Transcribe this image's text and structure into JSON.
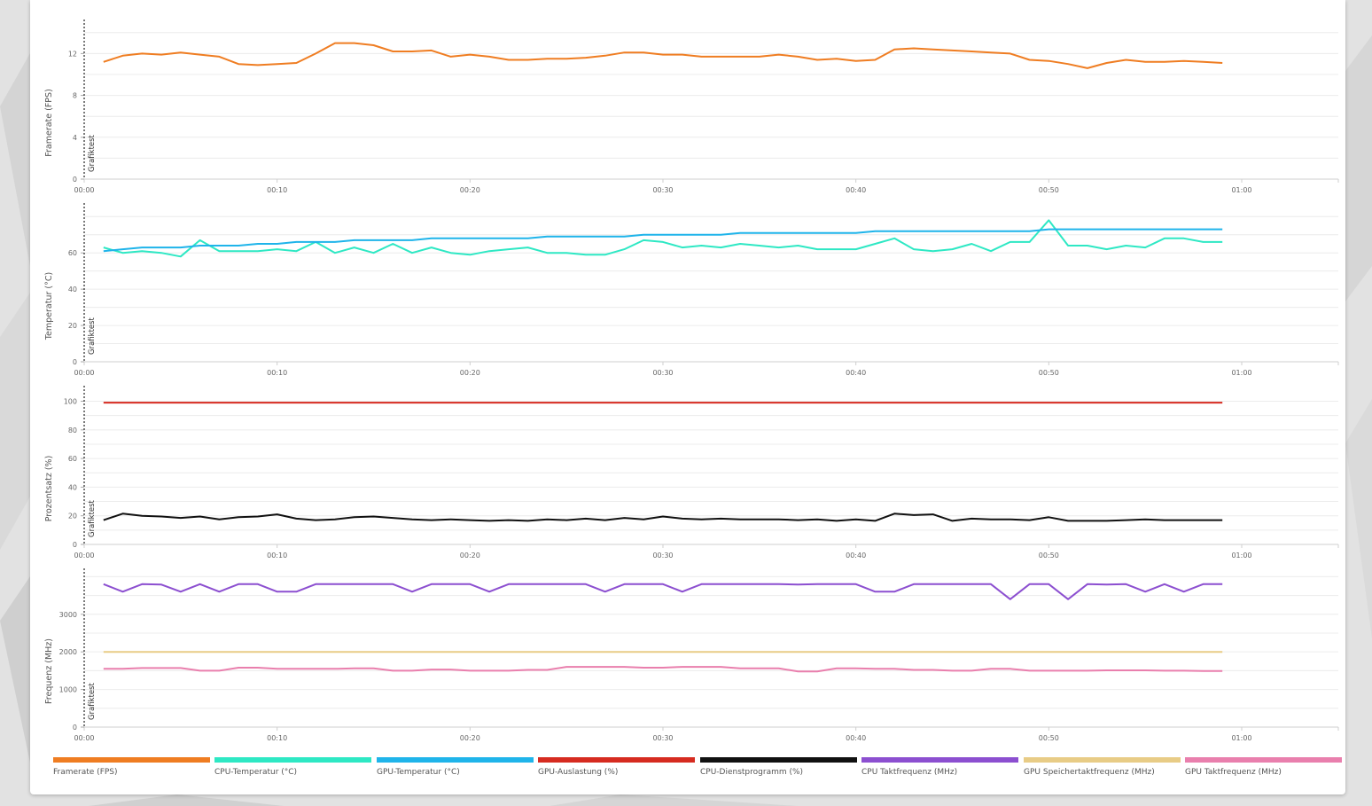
{
  "colors": {
    "fps": "#ef7d22",
    "cpu_temp": "#2ee8c4",
    "gpu_temp": "#1fb4ea",
    "gpu_load": "#d62b20",
    "cpu_util": "#111111",
    "cpu_clock": "#8c4fd0",
    "gpu_mem_clock": "#e8cc86",
    "gpu_clock": "#e97fad"
  },
  "legend": [
    {
      "label": "Framerate (FPS)",
      "color": "#ef7d22"
    },
    {
      "label": "CPU-Temperatur (°C)",
      "color": "#2ee8c4"
    },
    {
      "label": "GPU-Temperatur (°C)",
      "color": "#1fb4ea"
    },
    {
      "label": "GPU-Auslastung (%)",
      "color": "#d62b20"
    },
    {
      "label": "CPU-Dienstprogramm (%)",
      "color": "#111111"
    },
    {
      "label": "CPU Taktfrequenz (MHz)",
      "color": "#8c4fd0"
    },
    {
      "label": "GPU Speichertaktfrequenz (MHz)",
      "color": "#e8cc86"
    },
    {
      "label": "GPU Taktfrequenz (MHz)",
      "color": "#e97fad"
    }
  ],
  "chart_data": [
    {
      "type": "line",
      "ylabel": "Framerate (FPS)",
      "marker_label": "Grafiktest",
      "xlim": [
        0,
        65
      ],
      "ylim": [
        0,
        15
      ],
      "yticks": [
        0,
        4,
        8,
        12
      ],
      "xticks": [
        "00:00",
        "00:10",
        "00:20",
        "00:30",
        "00:40",
        "00:50",
        "01:00"
      ],
      "x": [
        1,
        2,
        3,
        4,
        5,
        6,
        7,
        8,
        9,
        10,
        11,
        12,
        13,
        14,
        15,
        16,
        17,
        18,
        19,
        20,
        21,
        22,
        23,
        24,
        25,
        26,
        27,
        28,
        29,
        30,
        31,
        32,
        33,
        34,
        35,
        36,
        37,
        38,
        39,
        40,
        41,
        42,
        43,
        44,
        45,
        46,
        47,
        48,
        49,
        50,
        51,
        52,
        53,
        54,
        55,
        56,
        57,
        58,
        59
      ],
      "series": [
        {
          "name": "Framerate (FPS)",
          "color": "#ef7d22",
          "values": [
            11.2,
            11.8,
            12.0,
            11.9,
            12.1,
            11.9,
            11.7,
            11.0,
            10.9,
            11.0,
            11.1,
            12.0,
            13.0,
            13.0,
            12.8,
            12.2,
            12.2,
            12.3,
            11.7,
            11.9,
            11.7,
            11.4,
            11.4,
            11.5,
            11.5,
            11.6,
            11.8,
            12.1,
            12.1,
            11.9,
            11.9,
            11.7,
            11.7,
            11.7,
            11.7,
            11.9,
            11.7,
            11.4,
            11.5,
            11.3,
            11.4,
            12.4,
            12.5,
            12.4,
            12.3,
            12.2,
            12.1,
            12.0,
            11.4,
            11.3,
            11.0,
            10.6,
            11.1,
            11.4,
            11.2,
            11.2,
            11.3,
            11.2,
            11.1
          ]
        }
      ]
    },
    {
      "type": "line",
      "ylabel": "Temperatur (°C)",
      "marker_label": "Grafiktest",
      "xlim": [
        0,
        65
      ],
      "ylim": [
        0,
        86
      ],
      "yticks": [
        0,
        20,
        40,
        60
      ],
      "xticks": [
        "00:00",
        "00:10",
        "00:20",
        "00:30",
        "00:40",
        "00:50",
        "01:00"
      ],
      "x": [
        1,
        2,
        3,
        4,
        5,
        6,
        7,
        8,
        9,
        10,
        11,
        12,
        13,
        14,
        15,
        16,
        17,
        18,
        19,
        20,
        21,
        22,
        23,
        24,
        25,
        26,
        27,
        28,
        29,
        30,
        31,
        32,
        33,
        34,
        35,
        36,
        37,
        38,
        39,
        40,
        41,
        42,
        43,
        44,
        45,
        46,
        47,
        48,
        49,
        50,
        51,
        52,
        53,
        54,
        55,
        56,
        57,
        58,
        59
      ],
      "series": [
        {
          "name": "CPU-Temperatur (°C)",
          "color": "#2ee8c4",
          "values": [
            63,
            60,
            61,
            60,
            58,
            67,
            61,
            61,
            61,
            62,
            61,
            66,
            60,
            63,
            60,
            65,
            60,
            63,
            60,
            59,
            61,
            62,
            63,
            60,
            60,
            59,
            59,
            62,
            67,
            66,
            63,
            64,
            63,
            65,
            64,
            63,
            64,
            62,
            62,
            62,
            65,
            68,
            62,
            61,
            62,
            65,
            61,
            66,
            66,
            78,
            64,
            64,
            62,
            64,
            63,
            68,
            68,
            66,
            66
          ]
        },
        {
          "name": "GPU-Temperatur (°C)",
          "color": "#1fb4ea",
          "values": [
            61,
            62,
            63,
            63,
            63,
            64,
            64,
            64,
            65,
            65,
            66,
            66,
            66,
            67,
            67,
            67,
            67,
            68,
            68,
            68,
            68,
            68,
            68,
            69,
            69,
            69,
            69,
            69,
            70,
            70,
            70,
            70,
            70,
            71,
            71,
            71,
            71,
            71,
            71,
            71,
            72,
            72,
            72,
            72,
            72,
            72,
            72,
            72,
            72,
            73,
            73,
            73,
            73,
            73,
            73,
            73,
            73,
            73,
            73
          ]
        }
      ]
    },
    {
      "type": "line",
      "ylabel": "Prozentsatz (%)",
      "marker_label": "Grafiktest",
      "xlim": [
        0,
        65
      ],
      "ylim": [
        0,
        109
      ],
      "yticks": [
        0,
        20,
        40,
        60,
        80,
        100
      ],
      "xticks": [
        "00:00",
        "00:10",
        "00:20",
        "00:30",
        "00:40",
        "00:50",
        "01:00"
      ],
      "x": [
        1,
        2,
        3,
        4,
        5,
        6,
        7,
        8,
        9,
        10,
        11,
        12,
        13,
        14,
        15,
        16,
        17,
        18,
        19,
        20,
        21,
        22,
        23,
        24,
        25,
        26,
        27,
        28,
        29,
        30,
        31,
        32,
        33,
        34,
        35,
        36,
        37,
        38,
        39,
        40,
        41,
        42,
        43,
        44,
        45,
        46,
        47,
        48,
        49,
        50,
        51,
        52,
        53,
        54,
        55,
        56,
        57,
        58,
        59
      ],
      "series": [
        {
          "name": "GPU-Auslastung (%)",
          "color": "#d62b20",
          "values": [
            99,
            99,
            99,
            99,
            99,
            99,
            99,
            99,
            99,
            99,
            99,
            99,
            99,
            99,
            99,
            99,
            99,
            99,
            99,
            99,
            99,
            99,
            99,
            99,
            99,
            99,
            99,
            99,
            99,
            99,
            99,
            99,
            99,
            99,
            99,
            99,
            99,
            99,
            99,
            99,
            99,
            99,
            99,
            99,
            99,
            99,
            99,
            99,
            99,
            99,
            99,
            99,
            99,
            99,
            99,
            99,
            99,
            99,
            99
          ]
        },
        {
          "name": "CPU-Dienstprogramm (%)",
          "color": "#111111",
          "values": [
            17,
            21.5,
            20,
            19.5,
            18.5,
            19.5,
            17.5,
            19,
            19.5,
            21,
            18,
            17,
            17.5,
            19,
            19.5,
            18.5,
            17.5,
            17,
            17.5,
            17,
            16.5,
            17,
            16.5,
            17.5,
            17,
            18,
            17,
            18.5,
            17.5,
            19.5,
            18,
            17.5,
            18,
            17.5,
            17.5,
            17.5,
            17,
            17.5,
            16.5,
            17.5,
            16.5,
            21.5,
            20.5,
            21,
            16.5,
            18,
            17.5,
            17.5,
            17,
            19,
            16.5,
            16.5,
            16.5,
            17,
            17.5,
            17,
            17,
            17,
            17
          ]
        }
      ]
    },
    {
      "type": "line",
      "ylabel": "Frequenz (MHz)",
      "marker_label": "Grafiktest",
      "xlim": [
        0,
        65
      ],
      "ylim": [
        0,
        4150
      ],
      "yticks": [
        0,
        1000,
        2000,
        3000
      ],
      "xticks": [
        "00:00",
        "00:10",
        "00:20",
        "00:30",
        "00:40",
        "00:50",
        "01:00"
      ],
      "x": [
        1,
        2,
        3,
        4,
        5,
        6,
        7,
        8,
        9,
        10,
        11,
        12,
        13,
        14,
        15,
        16,
        17,
        18,
        19,
        20,
        21,
        22,
        23,
        24,
        25,
        26,
        27,
        28,
        29,
        30,
        31,
        32,
        33,
        34,
        35,
        36,
        37,
        38,
        39,
        40,
        41,
        42,
        43,
        44,
        45,
        46,
        47,
        48,
        49,
        50,
        51,
        52,
        53,
        54,
        55,
        56,
        57,
        58,
        59
      ],
      "series": [
        {
          "name": "CPU Taktfrequenz (MHz)",
          "color": "#8c4fd0",
          "values": [
            3800,
            3600,
            3800,
            3790,
            3600,
            3800,
            3600,
            3800,
            3800,
            3600,
            3600,
            3800,
            3800,
            3800,
            3800,
            3800,
            3600,
            3800,
            3800,
            3800,
            3600,
            3800,
            3800,
            3800,
            3800,
            3800,
            3600,
            3800,
            3800,
            3800,
            3600,
            3800,
            3800,
            3800,
            3800,
            3800,
            3790,
            3800,
            3800,
            3800,
            3600,
            3600,
            3800,
            3800,
            3800,
            3800,
            3800,
            3400,
            3800,
            3800,
            3400,
            3800,
            3790,
            3800,
            3600,
            3800,
            3600,
            3800,
            3800
          ]
        },
        {
          "name": "GPU Speichertaktfrequenz (MHz)",
          "color": "#e8cc86",
          "values": [
            2000,
            2000,
            2000,
            2000,
            2000,
            2000,
            2000,
            2000,
            2000,
            2000,
            2000,
            2000,
            2000,
            2000,
            2000,
            2000,
            2000,
            2000,
            2000,
            2000,
            2000,
            2000,
            2000,
            2000,
            2000,
            2000,
            2000,
            2000,
            2000,
            2000,
            2000,
            2000,
            2000,
            2000,
            2000,
            2000,
            2000,
            2000,
            2000,
            2000,
            2000,
            2000,
            2000,
            2000,
            2000,
            2000,
            2000,
            2000,
            2000,
            2000,
            2000,
            2000,
            2000,
            2000,
            2000,
            2000,
            2000,
            2000,
            2000
          ]
        },
        {
          "name": "GPU Taktfrequenz (MHz)",
          "color": "#e97fad",
          "values": [
            1550,
            1550,
            1570,
            1570,
            1570,
            1500,
            1500,
            1580,
            1580,
            1550,
            1550,
            1550,
            1550,
            1560,
            1560,
            1500,
            1500,
            1530,
            1530,
            1500,
            1500,
            1500,
            1520,
            1520,
            1600,
            1600,
            1600,
            1600,
            1580,
            1580,
            1600,
            1600,
            1600,
            1560,
            1560,
            1560,
            1480,
            1480,
            1560,
            1560,
            1550,
            1550,
            1520,
            1520,
            1500,
            1500,
            1550,
            1550,
            1500,
            1500,
            1500,
            1500,
            1510,
            1510,
            1510,
            1500,
            1500,
            1490,
            1490
          ]
        }
      ]
    }
  ]
}
